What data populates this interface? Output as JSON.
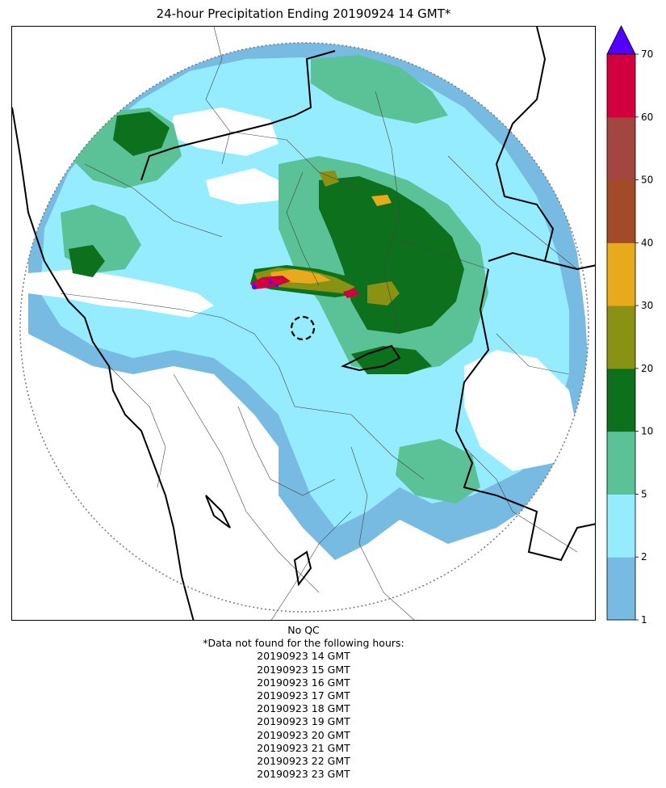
{
  "title": "24-hour Precipitation Ending 20190924 14 GMT*",
  "colorbar": {
    "ticks": [
      "1",
      "2",
      "5",
      "10",
      "20",
      "30",
      "40",
      "50",
      "60",
      "70"
    ],
    "bins": [
      {
        "from": 1,
        "to": 2,
        "color": "#78bbe2"
      },
      {
        "from": 2,
        "to": 5,
        "color": "#95ecfe"
      },
      {
        "from": 5,
        "to": 10,
        "color": "#5bc297"
      },
      {
        "from": 10,
        "to": 20,
        "color": "#0d701c"
      },
      {
        "from": 20,
        "to": 30,
        "color": "#8a9214"
      },
      {
        "from": 30,
        "to": 40,
        "color": "#e6aa1b"
      },
      {
        "from": 40,
        "to": 50,
        "color": "#a14b28"
      },
      {
        "from": 50,
        "to": 60,
        "color": "#a3463f"
      },
      {
        "from": 60,
        "to": 70,
        "color": "#d3003f"
      }
    ],
    "over_color": "#5200ff"
  },
  "footer": {
    "qc_note": "No QC",
    "missing_note": "*Data not found for the following hours:",
    "missing_hours": [
      "20190923 14 GMT",
      "20190923 15 GMT",
      "20190923 16 GMT",
      "20190923 17 GMT",
      "20190923 18 GMT",
      "20190923 19 GMT",
      "20190923 20 GMT",
      "20190923 21 GMT",
      "20190923 22 GMT",
      "20190923 23 GMT"
    ]
  }
}
